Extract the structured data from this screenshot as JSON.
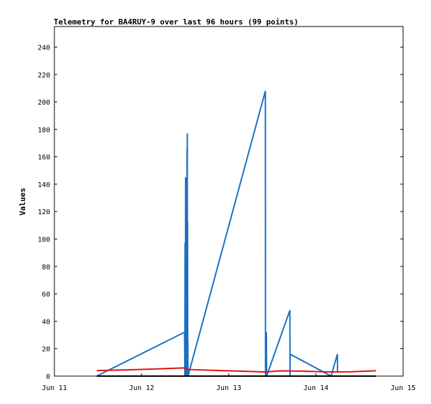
{
  "chart_data": {
    "type": "line",
    "title": "Telemetry for BA4RUY-9 over last 96 hours (99 points)",
    "ylabel": "Values",
    "xlabel": "",
    "x_ticks": [
      "Jun 11",
      "Jun 12",
      "Jun 13",
      "Jun 14",
      "Jun 15"
    ],
    "x_range_days": [
      11,
      15
    ],
    "y_ticks": [
      0,
      20,
      40,
      60,
      80,
      100,
      120,
      140,
      160,
      180,
      200,
      220,
      240
    ],
    "ylim": [
      0,
      255
    ],
    "grid": false,
    "legend": "none",
    "series": [
      {
        "color": "#1a6fc4",
        "points": [
          [
            "Jun 11 11:40",
            0
          ],
          [
            "Jun 12 11:50",
            32
          ],
          [
            "Jun 12 11:55",
            0
          ],
          [
            "Jun 12 11:58",
            97
          ],
          [
            "Jun 12 12:00",
            0
          ],
          [
            "Jun 12 12:02",
            60
          ],
          [
            "Jun 12 12:05",
            0
          ],
          [
            "Jun 12 12:07",
            145
          ],
          [
            "Jun 12 12:09",
            0
          ],
          [
            "Jun 12 12:11",
            128
          ],
          [
            "Jun 12 12:13",
            0
          ],
          [
            "Jun 12 12:15",
            33
          ],
          [
            "Jun 12 12:17",
            0
          ],
          [
            "Jun 12 12:19",
            60
          ],
          [
            "Jun 12 12:21",
            0
          ],
          [
            "Jun 12 12:23",
            96
          ],
          [
            "Jun 12 12:25",
            5
          ],
          [
            "Jun 12 12:27",
            145
          ],
          [
            "Jun 12 12:29",
            10
          ],
          [
            "Jun 12 12:31",
            166
          ],
          [
            "Jun 12 12:33",
            20
          ],
          [
            "Jun 12 12:35",
            177
          ],
          [
            "Jun 12 12:38",
            0
          ],
          [
            "Jun 12 12:40",
            113
          ],
          [
            "Jun 12 12:43",
            0
          ],
          [
            "Jun 12 12:45",
            26
          ],
          [
            "Jun 12 12:47",
            0
          ],
          [
            "Jun 13 10:05",
            208
          ],
          [
            "Jun 13 10:07",
            0
          ],
          [
            "Jun 13 10:15",
            20
          ],
          [
            "Jun 13 10:18",
            0
          ],
          [
            "Jun 13 10:22",
            32
          ],
          [
            "Jun 13 10:25",
            0
          ],
          [
            "Jun 13 16:50",
            48
          ],
          [
            "Jun 13 16:52",
            0
          ],
          [
            "Jun 13 16:54",
            16
          ],
          [
            "Jun 14 04:10",
            0
          ],
          [
            "Jun 14 05:55",
            16
          ],
          [
            "Jun 14 05:57",
            3
          ]
        ]
      },
      {
        "color": "#e01010",
        "points": [
          [
            "Jun 11 11:40",
            4.0
          ],
          [
            "Jun 11 20:00",
            4.5
          ],
          [
            "Jun 12 04:00",
            5.2
          ],
          [
            "Jun 12 12:00",
            6.0
          ],
          [
            "Jun 12 12:50",
            4.8
          ],
          [
            "Jun 12 22:00",
            4.0
          ],
          [
            "Jun 13 06:00",
            3.4
          ],
          [
            "Jun 13 10:00",
            3.0
          ],
          [
            "Jun 13 14:00",
            3.8
          ],
          [
            "Jun 13 20:00",
            3.6
          ],
          [
            "Jun 14 04:00",
            3.0
          ],
          [
            "Jun 14 10:00",
            3.2
          ],
          [
            "Jun 14 16:00",
            3.8
          ],
          [
            "Jun 14 16:30",
            4.0
          ]
        ]
      },
      {
        "color": "#000000",
        "points": [
          [
            "Jun 11 11:40",
            0
          ],
          [
            "Jun 14 16:30",
            0
          ]
        ]
      }
    ]
  }
}
